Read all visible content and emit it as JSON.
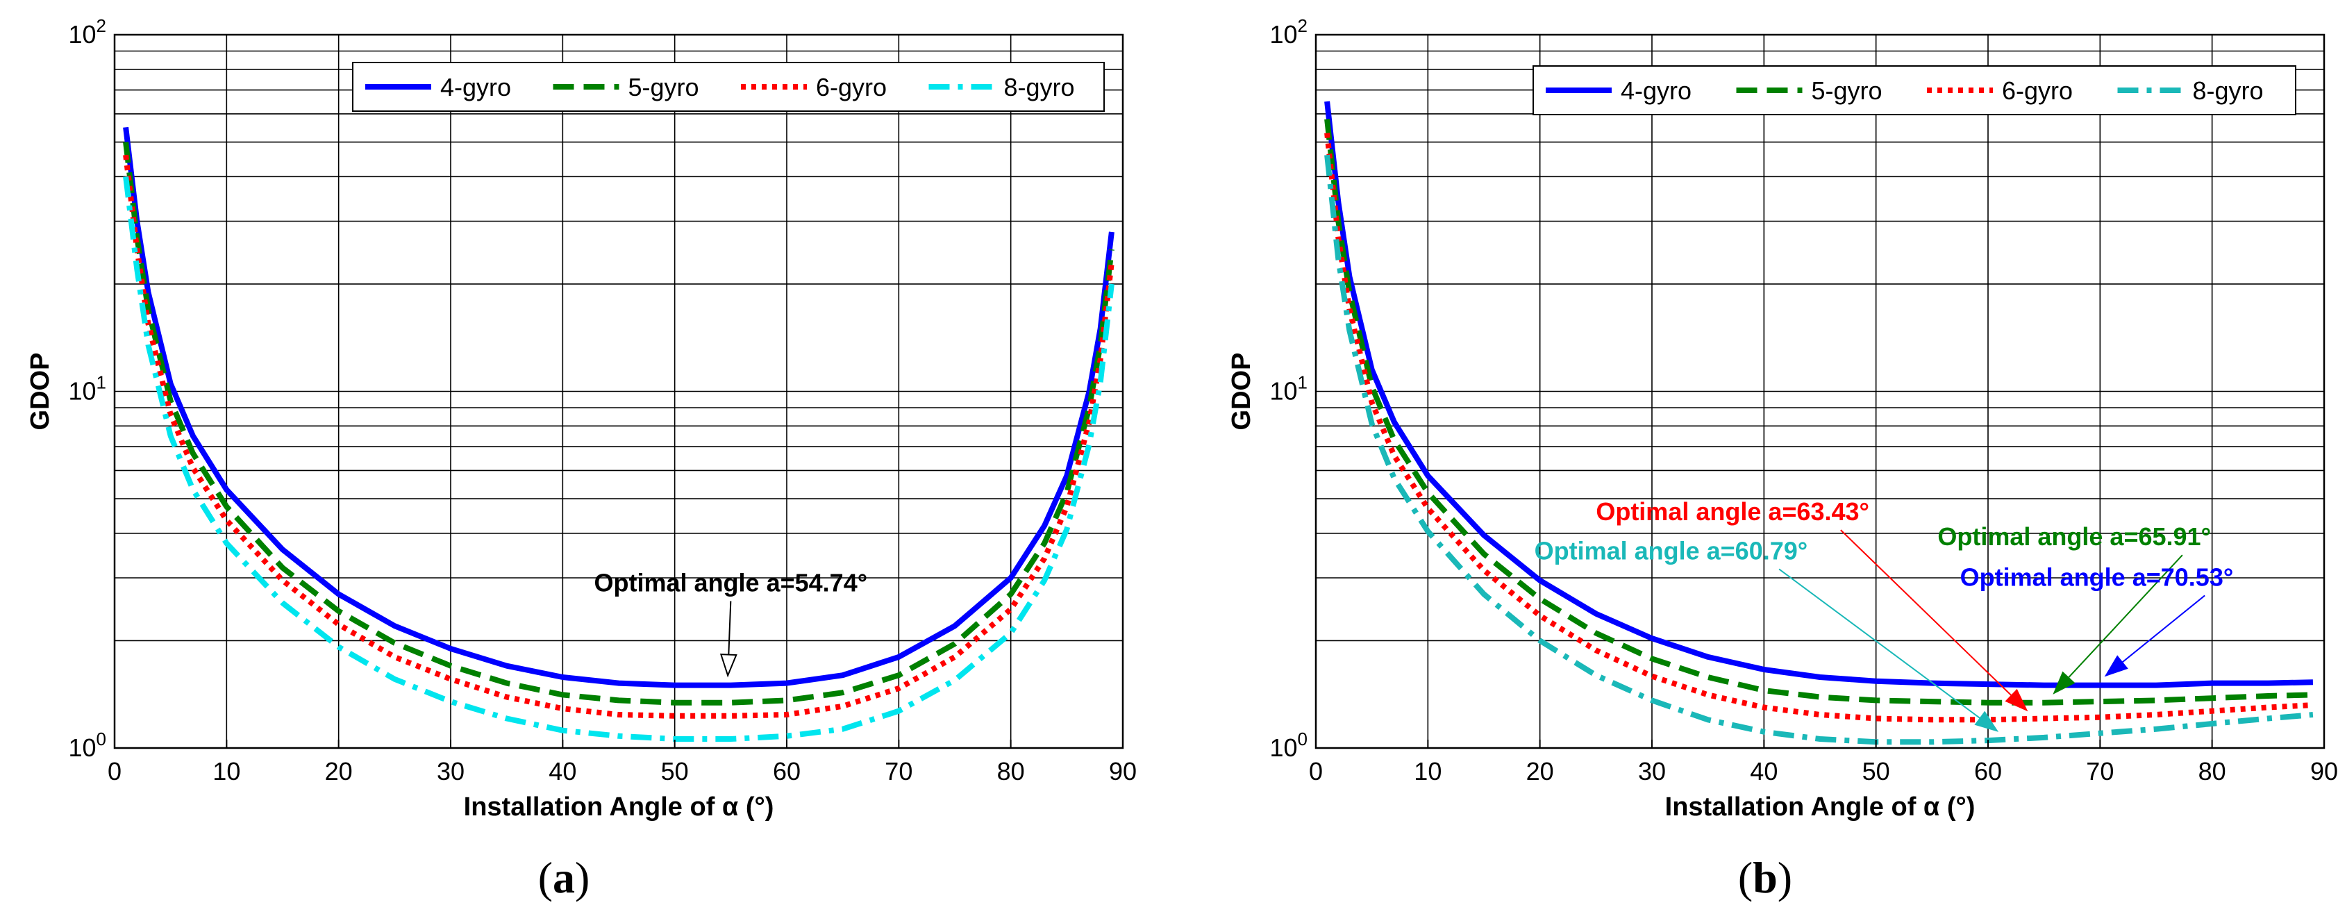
{
  "chart_data": [
    {
      "id": "a",
      "panel_label": "(a)",
      "panel_letter": "a",
      "type": "line",
      "title": "",
      "xlabel": "Installation Angle of α (°)",
      "ylabel": "GDOP",
      "yscale": "log",
      "xlim": [
        0,
        90
      ],
      "ylim": [
        1,
        100
      ],
      "xticks": [
        0,
        10,
        20,
        30,
        40,
        50,
        60,
        70,
        80,
        90
      ],
      "xtick_labels": [
        "0",
        "10",
        "20",
        "30",
        "40",
        "50",
        "60",
        "70",
        "80",
        "90"
      ],
      "ytick_labels": [
        {
          "value": 1,
          "base": "10",
          "exp": "0"
        },
        {
          "value": 10,
          "base": "10",
          "exp": "1"
        },
        {
          "value": 100,
          "base": "10",
          "exp": "2"
        }
      ],
      "grid": true,
      "legend_location": "top-right",
      "x": [
        1,
        2,
        3,
        5,
        7,
        10,
        15,
        20,
        25,
        30,
        35,
        40,
        45,
        50,
        55,
        60,
        65,
        70,
        75,
        80,
        83,
        85,
        87,
        88,
        89
      ],
      "series": [
        {
          "name": "4-gyro",
          "color": "#0000ff",
          "style": "solid",
          "values": [
            55,
            30,
            19,
            10.5,
            7.5,
            5.3,
            3.6,
            2.7,
            2.2,
            1.9,
            1.7,
            1.58,
            1.52,
            1.5,
            1.5,
            1.52,
            1.6,
            1.8,
            2.2,
            3.0,
            4.2,
            5.8,
            10,
            15,
            28
          ]
        },
        {
          "name": "5-gyro",
          "color": "#008000",
          "style": "dashed",
          "values": [
            50,
            27,
            17,
            9.4,
            6.7,
            4.75,
            3.2,
            2.42,
            1.97,
            1.7,
            1.52,
            1.41,
            1.36,
            1.34,
            1.34,
            1.36,
            1.43,
            1.6,
            1.96,
            2.7,
            3.75,
            5.2,
            9,
            13.5,
            25
          ]
        },
        {
          "name": "6-gyro",
          "color": "#ff0000",
          "style": "dotted",
          "values": [
            46,
            25,
            15.5,
            8.6,
            6.1,
            4.35,
            2.95,
            2.22,
            1.8,
            1.56,
            1.39,
            1.29,
            1.24,
            1.23,
            1.23,
            1.24,
            1.31,
            1.47,
            1.8,
            2.45,
            3.4,
            4.75,
            8.2,
            12.3,
            23
          ]
        },
        {
          "name": "8-gyro",
          "color": "#00e5ee",
          "style": "dashdot",
          "values": [
            40,
            22,
            13.5,
            7.5,
            5.3,
            3.75,
            2.55,
            1.92,
            1.56,
            1.35,
            1.21,
            1.12,
            1.08,
            1.06,
            1.06,
            1.08,
            1.13,
            1.27,
            1.55,
            2.1,
            2.95,
            4.1,
            7.1,
            10.6,
            20
          ]
        }
      ],
      "annotations": [
        {
          "text": "Optimal angle a=54.74°",
          "color": "#000000",
          "target_x": 54.74,
          "target_y": 1.5,
          "text_x": 55,
          "text_y": 2.75,
          "anchor": "middle"
        }
      ]
    },
    {
      "id": "b",
      "panel_label": "(b)",
      "panel_letter": "b",
      "type": "line",
      "title": "",
      "xlabel": "Installation Angle of α (°)",
      "ylabel": "GDOP",
      "yscale": "log",
      "xlim": [
        0,
        90
      ],
      "ylim": [
        1,
        100
      ],
      "xticks": [
        0,
        10,
        20,
        30,
        40,
        50,
        60,
        70,
        80,
        90
      ],
      "xtick_labels": [
        "0",
        "10",
        "20",
        "30",
        "40",
        "50",
        "60",
        "70",
        "80",
        "90"
      ],
      "ytick_labels": [
        {
          "value": 1,
          "base": "10",
          "exp": "0"
        },
        {
          "value": 10,
          "base": "10",
          "exp": "1"
        },
        {
          "value": 100,
          "base": "10",
          "exp": "2"
        }
      ],
      "grid": true,
      "legend_location": "top-right",
      "x": [
        1,
        2,
        3,
        5,
        7,
        10,
        15,
        20,
        25,
        30,
        35,
        40,
        45,
        50,
        55,
        60,
        65,
        70,
        75,
        80,
        85,
        89
      ],
      "series": [
        {
          "name": "4-gyro",
          "color": "#0000ff",
          "style": "solid",
          "values": [
            65,
            34,
            21,
            11.5,
            8.2,
            5.8,
            3.95,
            2.95,
            2.38,
            2.03,
            1.8,
            1.66,
            1.58,
            1.54,
            1.52,
            1.51,
            1.5,
            1.5,
            1.5,
            1.52,
            1.52,
            1.53
          ]
        },
        {
          "name": "5-gyro",
          "color": "#008000",
          "style": "dashed",
          "values": [
            58,
            30,
            19,
            10.3,
            7.3,
            5.2,
            3.5,
            2.62,
            2.1,
            1.78,
            1.58,
            1.45,
            1.39,
            1.36,
            1.35,
            1.34,
            1.34,
            1.35,
            1.36,
            1.38,
            1.4,
            1.41
          ]
        },
        {
          "name": "6-gyro",
          "color": "#ff0000",
          "style": "dotted",
          "values": [
            53,
            27,
            17,
            9.3,
            6.6,
            4.7,
            3.15,
            2.35,
            1.88,
            1.59,
            1.41,
            1.3,
            1.24,
            1.21,
            1.2,
            1.2,
            1.21,
            1.22,
            1.24,
            1.27,
            1.3,
            1.32
          ]
        },
        {
          "name": "8-gyro",
          "color": "#1ab8b8",
          "style": "dashdot",
          "values": [
            46,
            23.5,
            14.8,
            8.1,
            5.7,
            4.05,
            2.7,
            2.0,
            1.6,
            1.36,
            1.2,
            1.11,
            1.06,
            1.04,
            1.04,
            1.05,
            1.07,
            1.1,
            1.13,
            1.17,
            1.21,
            1.24
          ]
        }
      ],
      "annotations": [
        {
          "text": "Optimal angle a=63.43°",
          "color": "#ff0000",
          "target_x": 63.43,
          "target_y": 1.2,
          "text_x": 25,
          "text_y": 4.35,
          "anchor": "start"
        },
        {
          "text": "Optimal angle a=60.79°",
          "color": "#1ab8b8",
          "target_x": 60.79,
          "target_y": 1.05,
          "text_x": 19.5,
          "text_y": 3.38,
          "anchor": "start"
        },
        {
          "text": "Optimal angle a=65.91°",
          "color": "#008000",
          "target_x": 65.91,
          "target_y": 1.34,
          "text_x": 55.5,
          "text_y": 3.7,
          "anchor": "start"
        },
        {
          "text": "Optimal angle a=70.53°",
          "color": "#0000ff",
          "target_x": 70.53,
          "target_y": 1.5,
          "text_x": 57.5,
          "text_y": 2.85,
          "anchor": "start"
        }
      ]
    }
  ]
}
